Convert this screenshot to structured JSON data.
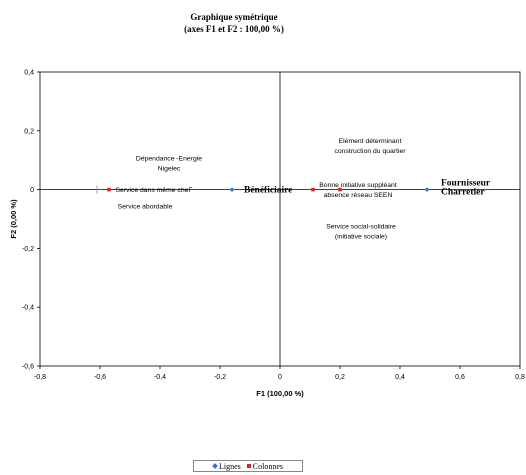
{
  "chart_data": {
    "type": "scatter",
    "title_line1": "Graphique symétrique",
    "title_line2": "(axes F1 et F2 : 100,00 %)",
    "xlabel": "F1 (100,00 %)",
    "ylabel": "F2 (0,00 %)",
    "xlim": [
      -0.8,
      0.8
    ],
    "ylim": [
      -0.6,
      0.4
    ],
    "x_ticks": [
      -0.8,
      -0.6,
      -0.4,
      -0.2,
      0,
      0.2,
      0.4,
      0.6,
      0.8
    ],
    "x_tick_labels": [
      "-0,8",
      "-0,6",
      "-0,4",
      "-0,2",
      "0",
      "0,2",
      "0,4",
      "0,6",
      "0,8"
    ],
    "y_ticks": [
      -0.6,
      -0.4,
      -0.2,
      0,
      0.2,
      0.4
    ],
    "y_tick_labels": [
      "-0,6",
      "-0,4",
      "-0,2",
      "0",
      "0,2",
      "0,4"
    ],
    "series": [
      {
        "name": "Lignes",
        "color": "#3a6fd8",
        "marker": "diamond",
        "points": [
          {
            "x": -0.16,
            "y": 0.0,
            "label": "Bénéficiaire",
            "bold": true
          },
          {
            "x": 0.49,
            "y": 0.0,
            "label_lines": [
              "Fournisseur",
              "Charretier"
            ],
            "bold": true
          }
        ]
      },
      {
        "name": "Colonnes",
        "color": "#d8262b",
        "marker": "square",
        "points": [
          {
            "x": -0.57,
            "y": 0.0
          },
          {
            "x": 0.11,
            "y": 0.0
          },
          {
            "x": 0.2,
            "y": 0.0
          }
        ]
      }
    ],
    "annotations": [
      {
        "lines": [
          "Dépendance -Energie",
          "Nigelec"
        ],
        "x": -0.37,
        "y": 0.09
      },
      {
        "lines": [
          "Service dans même cheF"
        ],
        "x": -0.42,
        "y": 0.0
      },
      {
        "lines": [
          "Service abordable"
        ],
        "x": -0.45,
        "y": -0.055
      },
      {
        "lines": [
          "Elément déterminant",
          "construction du quartier"
        ],
        "x": 0.3,
        "y": 0.15
      },
      {
        "lines": [
          "Bonne initiative suppléant",
          "absence réseau SEEN"
        ],
        "x": 0.26,
        "y": 0.0
      },
      {
        "lines": [
          "Service social-solidaire",
          "(initiative sociale)"
        ],
        "x": 0.27,
        "y": -0.14
      }
    ],
    "legend": {
      "placement": "bottom",
      "entries": [
        "Lignes",
        "Colonnes"
      ]
    },
    "grid": false
  }
}
